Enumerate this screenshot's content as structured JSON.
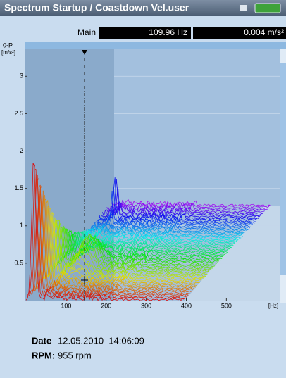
{
  "header": {
    "title": "Spectrum Startup / Coastdown Vel.user"
  },
  "readout": {
    "label": "Main",
    "frequency": "109.96 Hz",
    "amplitude": "0.004 m/s²"
  },
  "chart_data": {
    "type": "waterfall",
    "y_label": "0-P",
    "y_unit": "[m/s²]",
    "x_unit": "[Hz]",
    "ylim": [
      0,
      3.37
    ],
    "yticks": [
      0.5,
      1,
      1.5,
      2,
      2.5,
      3
    ],
    "xlim": [
      0,
      633
    ],
    "xticks": [
      100,
      200,
      300,
      400,
      500
    ]
  },
  "footer": {
    "date_label": "Date",
    "date": "12.05.2010  14:06:09",
    "rpm_label": "RPM:",
    "rpm": "955 rpm"
  }
}
